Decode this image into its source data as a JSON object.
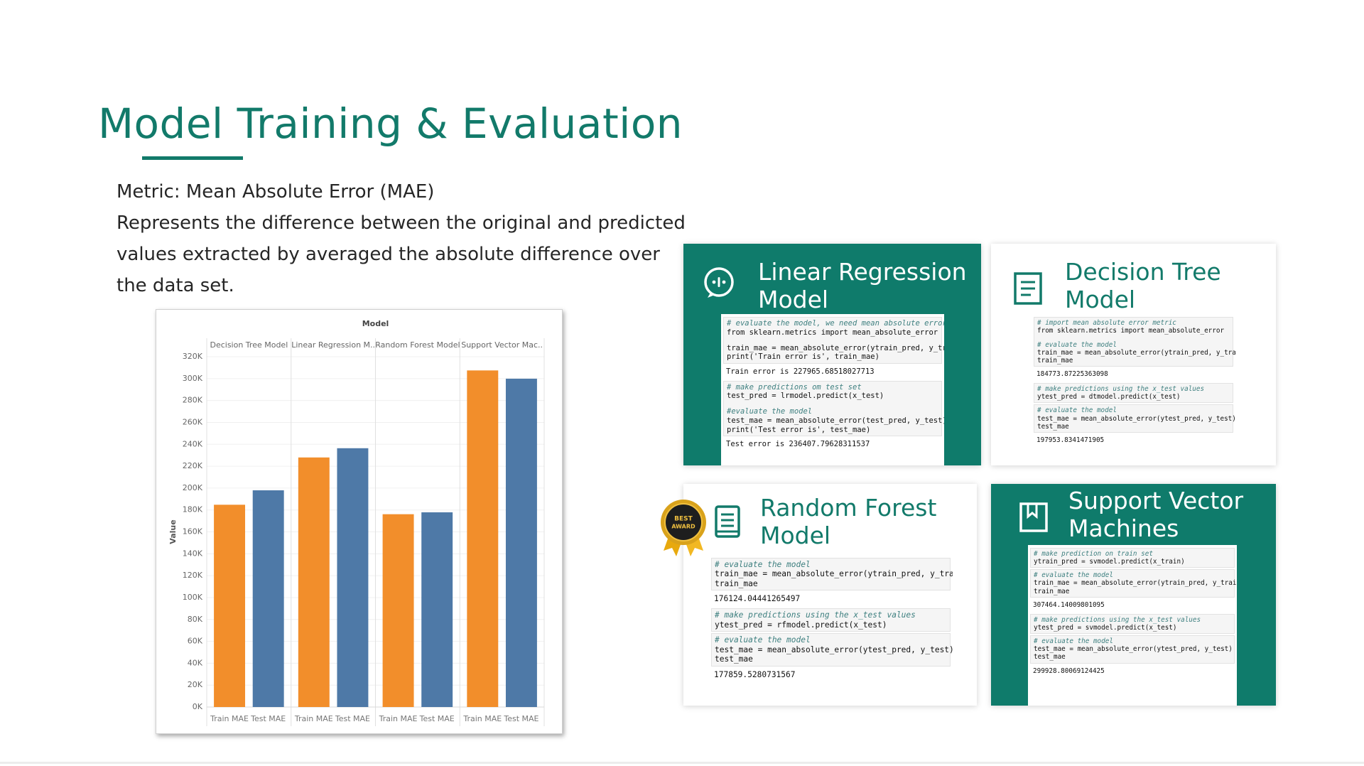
{
  "title": "Model Training & Evaluation",
  "description": [
    "Metric: Mean Absolute Error (MAE)",
    "Represents the difference between the original and predicted",
    "values extracted by averaged the absolute difference over",
    "the data set."
  ],
  "chart_data": {
    "type": "bar",
    "title": "Model",
    "ylabel": "Value",
    "categories": [
      "Decision Tree Model",
      "Linear Regression M..",
      "Random Forest Model",
      "Support Vector Mac.."
    ],
    "series": [
      {
        "name": "Train MAE",
        "color": "#f28e2b",
        "values": [
          184773.87,
          227965.69,
          176124.04,
          307464.14
        ]
      },
      {
        "name": "Test MAE",
        "color": "#4e79a7",
        "values": [
          197953.83,
          236407.8,
          177859.53,
          299928.8
        ]
      }
    ],
    "ylim": [
      0,
      330000
    ],
    "yticks": [
      {
        "value": 0,
        "label": "0K"
      },
      {
        "value": 20000,
        "label": "20K"
      },
      {
        "value": 40000,
        "label": "40K"
      },
      {
        "value": 60000,
        "label": "60K"
      },
      {
        "value": 80000,
        "label": "80K"
      },
      {
        "value": 100000,
        "label": "100K"
      },
      {
        "value": 120000,
        "label": "120K"
      },
      {
        "value": 140000,
        "label": "140K"
      },
      {
        "value": 160000,
        "label": "160K"
      },
      {
        "value": 180000,
        "label": "180K"
      },
      {
        "value": 200000,
        "label": "200K"
      },
      {
        "value": 220000,
        "label": "220K"
      },
      {
        "value": 240000,
        "label": "240K"
      },
      {
        "value": 260000,
        "label": "260K"
      },
      {
        "value": 280000,
        "label": "280K"
      },
      {
        "value": 300000,
        "label": "300K"
      },
      {
        "value": 320000,
        "label": "320K"
      }
    ],
    "grid": true
  },
  "badge": [
    "BEST",
    "AWARD"
  ],
  "cards": [
    {
      "title": [
        "Linear Regression",
        "Model"
      ],
      "color": "#0f7b6b",
      "cells": [
        {
          "input": [
            [
              "# evaluate the model, we need mean absolute error",
              "from sklearn.metrics import mean_absolute_error"
            ],
            [
              "train_mae = mean_absolute_error(ytrain_pred, y_train)",
              "print('Train error is', train_mae)"
            ]
          ],
          "output": "Train error is 227965.68518027713"
        },
        {
          "input": [
            [
              "# make predictions om test set",
              "test_pred = lrmodel.predict(x_test)"
            ],
            [
              "#evaluate the model",
              "test_mae = mean_absolute_error(test_pred, y_test)",
              "print('Test error is', test_mae)"
            ]
          ],
          "output": "Test error is 236407.79628311537"
        }
      ]
    },
    {
      "title": [
        "Decision Tree",
        "Model"
      ],
      "color": "#ffffff",
      "cells": [
        {
          "input": [
            [
              "# import mean absolute error metric",
              "from sklearn.metrics import mean_absolute_error"
            ],
            [
              "# evaluate the model",
              "train_mae = mean_absolute_error(ytrain_pred, y_train)",
              "train_mae"
            ]
          ],
          "output": "184773.87225363098"
        },
        {
          "input": [
            [
              "# make predictions using the x_test values",
              "ytest_pred = dtmodel.predict(x_test)"
            ]
          ]
        },
        {
          "input": [
            [
              "# evaluate the model",
              "test_mae = mean_absolute_error(ytest_pred, y_test)",
              "test_mae"
            ]
          ],
          "output": "197953.8341471905"
        }
      ]
    },
    {
      "title": [
        "Random Forest",
        "Model"
      ],
      "color": "#ffffff",
      "cells": [
        {
          "input": [
            [
              "# evaluate the model",
              "train_mae = mean_absolute_error(ytrain_pred, y_train)",
              "train_mae"
            ]
          ],
          "output": "176124.04441265497"
        },
        {
          "input": [
            [
              "# make predictions using the x_test values",
              "ytest_pred = rfmodel.predict(x_test)"
            ]
          ]
        },
        {
          "input": [
            [
              "# evaluate the model",
              "test_mae = mean_absolute_error(ytest_pred, y_test)",
              "test_mae"
            ]
          ],
          "output": "177859.5280731567"
        }
      ]
    },
    {
      "title": [
        "Support Vector",
        "Machines"
      ],
      "color": "#0f7b6b",
      "cells": [
        {
          "input": [
            [
              "# make prediction on train set",
              "ytrain_pred = svmodel.predict(x_train)"
            ]
          ]
        },
        {
          "input": [
            [
              "# evaluate the model",
              "train_mae = mean_absolute_error(ytrain_pred, y_train)",
              "train_mae"
            ]
          ],
          "output": "307464.14009801095"
        },
        {
          "input": [
            [
              "# make predictions using the x_test values",
              "ytest_pred = svmodel.predict(x_test)"
            ]
          ]
        },
        {
          "input": [
            [
              "# evaluate the model",
              "test_mae = mean_absolute_error(ytest_pred, y_test)",
              "test_mae"
            ]
          ],
          "output": "299928.80069124425"
        }
      ]
    }
  ]
}
